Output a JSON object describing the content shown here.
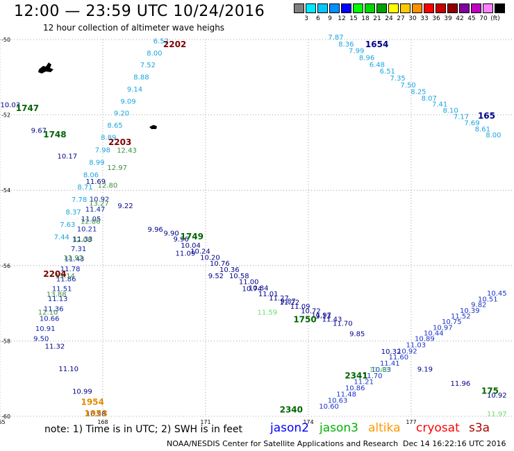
{
  "header": {
    "title": "12:00 — 23:59 UTC 10/24/2016",
    "subtitle": "12 hour collection of altimeter wave heighs"
  },
  "scale": {
    "colors": [
      "#808080",
      "#00e8ff",
      "#00c8ff",
      "#0090ff",
      "#0000ff",
      "#00ff00",
      "#00d800",
      "#00a000",
      "#ffff00",
      "#ffc800",
      "#ff9000",
      "#ff0000",
      "#c80000",
      "#900000",
      "#8000a0",
      "#c000c0",
      "#ff80ff",
      "#000000"
    ],
    "labels": [
      "3",
      "6",
      "9",
      "12",
      "15",
      "18",
      "21",
      "24",
      "27",
      "30",
      "33",
      "36",
      "39",
      "42",
      "45",
      "70",
      "(ft)"
    ]
  },
  "axes": {
    "lat_ticks": [
      "-50",
      "-52",
      "-54",
      "-56",
      "-58",
      "-60"
    ],
    "lon_ticks": [
      "165",
      "168",
      "171",
      "174",
      "177"
    ]
  },
  "tracks": [
    {
      "color": "#1aa3e0",
      "path": [
        [
          166.8,
          -55.3
        ],
        [
          168.2,
          -52.6
        ],
        [
          169.7,
          -50.1
        ]
      ],
      "values": [
        "7.44",
        "7.63",
        "8.37",
        "7.78",
        "8.71",
        "8.06",
        "8.99",
        "7.98",
        "8.89",
        "8.65",
        "9.20",
        "9.09",
        "9.14",
        "8.88",
        "7.52",
        "8.00",
        "6.52"
      ]
    },
    {
      "color": "#00008b",
      "path": [
        [
          165.3,
          -51.8
        ],
        [
          168.0,
          -54.0
        ],
        [
          171.2,
          -56.3
        ],
        [
          174.0,
          -57.2
        ],
        [
          177.8,
          -59.0
        ],
        [
          179.5,
          -59.5
        ]
      ],
      "values": [
        "10.03",
        "9.67",
        "10.17",
        "11.69",
        "9.22",
        "9.96",
        "11.09",
        "9.52",
        "10.74",
        "9.87",
        "9.13",
        "9.85",
        "10.32",
        "9.19",
        "11.96",
        "10.92"
      ]
    },
    {
      "color": "#0a22a8",
      "path": [
        [
          166.2,
          -58.0
        ],
        [
          167.9,
          -54.3
        ]
      ],
      "values": [
        "9.50",
        "10.91",
        "10.66",
        "11.36",
        "11.13",
        "11.51",
        "11.86",
        "11.78",
        "11.43",
        "7.31",
        "11.33",
        "10.21",
        "11.05",
        "11.47",
        "10.92"
      ]
    },
    {
      "color": "#1aa3e0",
      "path": [
        [
          174.8,
          -50.0
        ],
        [
          177.3,
          -51.5
        ],
        [
          179.4,
          -52.6
        ]
      ],
      "values": [
        "7.87",
        "8.36",
        "7.99",
        "8.96",
        "6.48",
        "6.51",
        "7.35",
        "7.50",
        "8.25",
        "8.07",
        "7.41",
        "8.10",
        "7.17",
        "7.69",
        "8.61",
        "8.00"
      ]
    },
    {
      "color": "#1a33c8",
      "path": [
        [
          174.6,
          -59.8
        ],
        [
          177.4,
          -58.0
        ],
        [
          179.5,
          -56.8
        ]
      ],
      "values": [
        "10.60",
        "10.63",
        "11.48",
        "10.86",
        "11.21",
        "11.70",
        "10.83",
        "11.41",
        "11.60",
        "10.92",
        "11.03",
        "10.89",
        "10.44",
        "10.97",
        "10.75",
        "11.52",
        "10.39",
        "9.82",
        "10.51",
        "10.45"
      ]
    },
    {
      "color": "#00008b",
      "path": [
        [
          170.0,
          -55.2
        ],
        [
          172.8,
          -56.8
        ],
        [
          175.0,
          -57.6
        ]
      ],
      "values": [
        "9.90",
        "9.96",
        "10.04",
        "10.24",
        "10.20",
        "10.76",
        "10.36",
        "10.58",
        "11.00",
        "10.84",
        "11.01",
        "11.27",
        "11.22",
        "11.09",
        "10.72",
        "11.97",
        "11.43",
        "11.70"
      ]
    },
    {
      "color": "#3d8d3d",
      "path": [
        [
          166.4,
          -57.3
        ],
        [
          168.1,
          -54.0
        ],
        [
          168.7,
          -53.0
        ]
      ],
      "values": [
        "12.10",
        "13.88",
        "13.14",
        "12.92",
        "12.08",
        "12.86",
        "13.27",
        "12.80",
        "12.97",
        "12.43"
      ]
    },
    {
      "color": "#00008b",
      "path": [
        [
          166.6,
          -58.2
        ],
        [
          167.8,
          -60.0
        ]
      ],
      "values": [
        "11.32",
        "11.10",
        "10.99",
        "10.98"
      ]
    },
    {
      "color": "#66dd66",
      "path": [
        [
          172.8,
          -57.3
        ],
        [
          176.0,
          -58.8
        ],
        [
          179.5,
          -60.0
        ]
      ],
      "values": [
        "11.59",
        "11.48",
        "11.97"
      ]
    }
  ],
  "markers": [
    {
      "label": "2202",
      "color": "#7a0000",
      "lon": 170.1,
      "lat": -50.2
    },
    {
      "label": "1654",
      "color": "#00008b",
      "lon": 176.0,
      "lat": -50.2
    },
    {
      "label": "1747",
      "color": "#006400",
      "lon": 165.8,
      "lat": -51.9
    },
    {
      "label": "165",
      "color": "#00008b",
      "lon": 179.2,
      "lat": -52.1
    },
    {
      "label": "1748",
      "color": "#006400",
      "lon": 166.6,
      "lat": -52.6
    },
    {
      "label": "2203",
      "color": "#7a0000",
      "lon": 168.5,
      "lat": -52.8
    },
    {
      "label": "1749",
      "color": "#006400",
      "lon": 170.6,
      "lat": -55.3
    },
    {
      "label": "2204",
      "color": "#7a0000",
      "lon": 166.6,
      "lat": -56.3
    },
    {
      "label": "1750",
      "color": "#006400",
      "lon": 173.9,
      "lat": -57.5
    },
    {
      "label": "2341",
      "color": "#006400",
      "lon": 175.4,
      "lat": -59.0
    },
    {
      "label": "175",
      "color": "#006400",
      "lon": 179.3,
      "lat": -59.4
    },
    {
      "label": "1954",
      "color": "#e08a00",
      "lon": 167.7,
      "lat": -59.7
    },
    {
      "label": "1953",
      "color": "#e08a00",
      "lon": 167.8,
      "lat": -60.0
    },
    {
      "label": "2340",
      "color": "#006400",
      "lon": 173.5,
      "lat": -59.9
    }
  ],
  "footer": {
    "note": "note: 1) Time is in UTC; 2) SWH is in feet",
    "legend": [
      {
        "name": "jason2",
        "color": "#0000ff"
      },
      {
        "name": "jason3",
        "color": "#00b000"
      },
      {
        "name": "altika",
        "color": "#ff9900"
      },
      {
        "name": "cryosat",
        "color": "#ff0000"
      },
      {
        "name": "s3a",
        "color": "#b00000"
      }
    ],
    "credit": "NOAA/NESDIS Center for Satellite Applications and Research",
    "date": "Dec 14 16:22:16 UTC 2016"
  }
}
